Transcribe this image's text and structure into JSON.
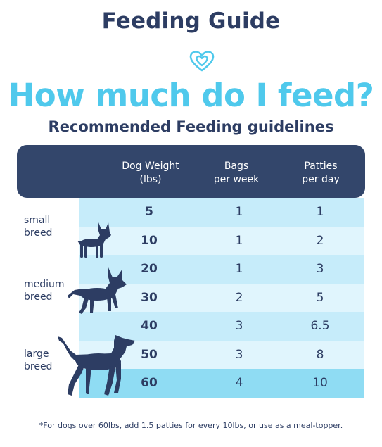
{
  "title": "Feeding Guide",
  "headline": "How much do I feed?",
  "subtitle": "Recommended Feeding guidelines",
  "colors": {
    "navy": "#2d3d63",
    "header_bg": "#33466b",
    "accent_cyan": "#4fc9ec",
    "row_light": "#e0f5fd",
    "row_mid": "#c6ecfa",
    "row_dark": "#8fdcf3"
  },
  "icons": [
    "heart-logo-icon",
    "small-dog-icon",
    "medium-dog-icon",
    "large-dog-icon"
  ],
  "table": {
    "headers": [
      "Dog Weight\n(lbs)",
      "Bags\nper week",
      "Patties\nper day"
    ],
    "rows": [
      {
        "weight": "5",
        "bags": "1",
        "patties": "1"
      },
      {
        "weight": "10",
        "bags": "1",
        "patties": "2"
      },
      {
        "weight": "20",
        "bags": "1",
        "patties": "3"
      },
      {
        "weight": "30",
        "bags": "2",
        "patties": "5"
      },
      {
        "weight": "40",
        "bags": "3",
        "patties": "6.5"
      },
      {
        "weight": "50",
        "bags": "3",
        "patties": "8"
      },
      {
        "weight": "60",
        "bags": "4",
        "patties": "10"
      }
    ]
  },
  "breeds": [
    {
      "label": "small\nbreed"
    },
    {
      "label": "medium\nbreed"
    },
    {
      "label": "large\nbreed"
    }
  ],
  "footnote": "*For dogs over 60lbs, add 1.5 patties for every 10lbs, or use as a meal-topper."
}
